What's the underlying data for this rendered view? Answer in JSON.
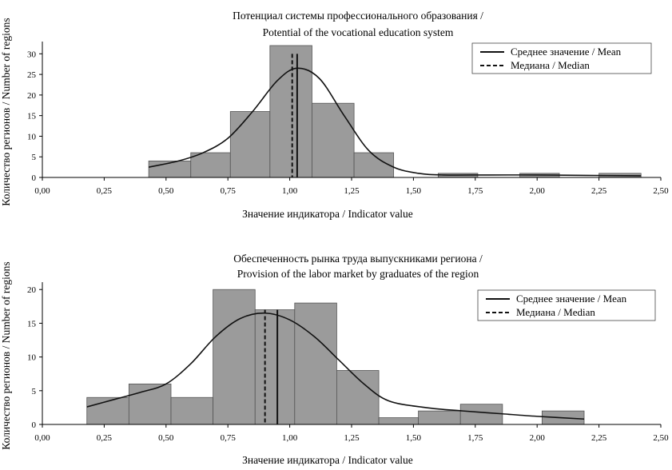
{
  "chart_data": [
    {
      "type": "bar",
      "title": [
        "Потенциал системы профессионального образования /",
        "Potential of the vocational education system"
      ],
      "xlabel": "Значение индикатора / Indicator value",
      "ylabel": "Количество регионов / Number of regions",
      "xlim": [
        0,
        2.5
      ],
      "ylim": [
        0,
        32
      ],
      "x_ticks": [
        "0,00",
        "0,25",
        "0,50",
        "0,75",
        "1,00",
        "1,25",
        "1,50",
        "1,75",
        "2,00",
        "2,25",
        "2,50"
      ],
      "y_ticks": [
        0,
        5,
        10,
        15,
        20,
        25,
        30
      ],
      "bins": [
        {
          "start": 0.43,
          "end": 0.6,
          "value": 4
        },
        {
          "start": 0.6,
          "end": 0.76,
          "value": 6
        },
        {
          "start": 0.76,
          "end": 0.92,
          "value": 16
        },
        {
          "start": 0.92,
          "end": 1.09,
          "value": 32
        },
        {
          "start": 1.09,
          "end": 1.26,
          "value": 18
        },
        {
          "start": 1.26,
          "end": 1.42,
          "value": 6
        },
        {
          "start": 1.6,
          "end": 1.76,
          "value": 1
        },
        {
          "start": 1.93,
          "end": 2.09,
          "value": 1
        },
        {
          "start": 2.25,
          "end": 2.42,
          "value": 1
        }
      ],
      "density_curve": {
        "x": [
          0.43,
          0.55,
          0.65,
          0.75,
          0.85,
          0.95,
          1.03,
          1.12,
          1.22,
          1.32,
          1.42,
          1.52,
          1.62,
          1.8,
          2.0,
          2.2,
          2.42
        ],
        "y": [
          2.5,
          4.0,
          6.0,
          9.5,
          16.0,
          23.5,
          26.5,
          24.0,
          15.0,
          6.5,
          2.5,
          1.0,
          0.6,
          0.6,
          0.6,
          0.5,
          0.4
        ]
      },
      "mean": 1.03,
      "median": 1.01,
      "line_top": 30,
      "legend": {
        "mean": "Среднее значение / Mean",
        "median": "Медиана / Median"
      },
      "legend_position": "top-right",
      "bar_color": "#9b9b9b"
    },
    {
      "type": "bar",
      "title": [
        "Обеспеченность рынка труда выпускниками региона /",
        "Provision of the labor market by graduates of the region"
      ],
      "xlabel": "Значение индикатора / Indicator value",
      "ylabel": "Количество регионов / Number of regions",
      "xlim": [
        0,
        2.5
      ],
      "ylim": [
        0,
        20.5
      ],
      "x_ticks": [
        "0,00",
        "0,25",
        "0,50",
        "0,75",
        "1,00",
        "1,25",
        "1,50",
        "1,75",
        "2,00",
        "2,25",
        "2,50"
      ],
      "y_ticks": [
        0,
        5,
        10,
        15,
        20
      ],
      "bins": [
        {
          "start": 0.18,
          "end": 0.35,
          "value": 4
        },
        {
          "start": 0.35,
          "end": 0.52,
          "value": 6
        },
        {
          "start": 0.52,
          "end": 0.69,
          "value": 4
        },
        {
          "start": 0.69,
          "end": 0.86,
          "value": 20
        },
        {
          "start": 0.86,
          "end": 1.02,
          "value": 17
        },
        {
          "start": 1.02,
          "end": 1.19,
          "value": 18
        },
        {
          "start": 1.19,
          "end": 1.36,
          "value": 8
        },
        {
          "start": 1.36,
          "end": 1.52,
          "value": 1
        },
        {
          "start": 1.52,
          "end": 1.69,
          "value": 2
        },
        {
          "start": 1.69,
          "end": 1.86,
          "value": 3
        },
        {
          "start": 2.02,
          "end": 2.19,
          "value": 2
        }
      ],
      "density_curve": {
        "x": [
          0.18,
          0.3,
          0.4,
          0.5,
          0.6,
          0.7,
          0.8,
          0.9,
          1.0,
          1.1,
          1.2,
          1.3,
          1.4,
          1.55,
          1.7,
          1.85,
          2.0,
          2.19
        ],
        "y": [
          2.6,
          3.8,
          4.8,
          6.0,
          9.0,
          13.0,
          15.7,
          16.5,
          15.5,
          13.0,
          9.5,
          6.0,
          3.5,
          2.5,
          2.0,
          1.6,
          1.2,
          0.8
        ]
      },
      "mean": 0.95,
      "median": 0.9,
      "line_top": 17,
      "legend": {
        "mean": "Среднее значение / Mean",
        "median": "Медиана / Median"
      },
      "legend_position": "top-right",
      "bar_color": "#9b9b9b"
    }
  ]
}
